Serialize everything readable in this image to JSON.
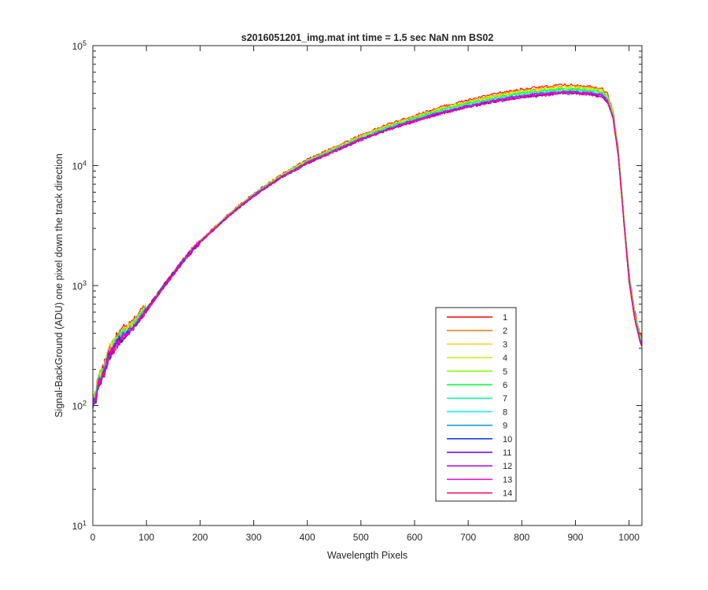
{
  "chart_data": {
    "type": "line",
    "title": "s2016051201_img.mat int time = 1.5 sec  NaN nm BS02",
    "xlabel": "Wavelength Pixels",
    "ylabel": "Signal-BackGround (ADU) one pixel down the track direction",
    "xlim": [
      0,
      1024
    ],
    "ylim": [
      10,
      100000
    ],
    "yscale": "log",
    "xticks": [
      "0",
      "100",
      "200",
      "300",
      "400",
      "500",
      "600",
      "700",
      "800",
      "900",
      "1000"
    ],
    "yticks": [
      {
        "base": "10",
        "exp": "1"
      },
      {
        "base": "10",
        "exp": "2"
      },
      {
        "base": "10",
        "exp": "3"
      },
      {
        "base": "10",
        "exp": "4"
      },
      {
        "base": "10",
        "exp": "5"
      }
    ],
    "grid": false,
    "legend_position": "lower-right",
    "shape": {
      "x": [
        0,
        5,
        10,
        20,
        30,
        50,
        75,
        100,
        125,
        150,
        175,
        200,
        250,
        300,
        350,
        400,
        450,
        500,
        550,
        600,
        650,
        700,
        750,
        800,
        850,
        870,
        900,
        930,
        950,
        960,
        970,
        980,
        990,
        1000,
        1010,
        1020,
        1024
      ],
      "y": [
        100,
        110,
        150,
        180,
        260,
        350,
        440,
        620,
        900,
        1250,
        1750,
        2300,
        3700,
        5600,
        7900,
        10500,
        13200,
        16500,
        20000,
        23500,
        27500,
        31000,
        34500,
        37500,
        39500,
        40500,
        40500,
        39500,
        38000,
        34000,
        25000,
        12000,
        3500,
        1100,
        550,
        350,
        320
      ]
    },
    "series": [
      {
        "name": "1",
        "color": "#ff0000",
        "scale": 1.16
      },
      {
        "name": "2",
        "color": "#ff7300",
        "scale": 1.13
      },
      {
        "name": "3",
        "color": "#ffd000",
        "scale": 1.12
      },
      {
        "name": "4",
        "color": "#c8f500",
        "scale": 1.1
      },
      {
        "name": "5",
        "color": "#7dff00",
        "scale": 1.09
      },
      {
        "name": "6",
        "color": "#00ff3a",
        "scale": 1.07
      },
      {
        "name": "7",
        "color": "#00ff9e",
        "scale": 1.05
      },
      {
        "name": "8",
        "color": "#00f2ff",
        "scale": 1.03
      },
      {
        "name": "9",
        "color": "#0091ff",
        "scale": 1.01
      },
      {
        "name": "10",
        "color": "#0030ff",
        "scale": 0.99
      },
      {
        "name": "11",
        "color": "#5a00ff",
        "scale": 1.0
      },
      {
        "name": "12",
        "color": "#b400ff",
        "scale": 1.02
      },
      {
        "name": "13",
        "color": "#ff00e6",
        "scale": 1.01
      },
      {
        "name": "14",
        "color": "#ff0064",
        "scale": 0.98
      }
    ]
  }
}
